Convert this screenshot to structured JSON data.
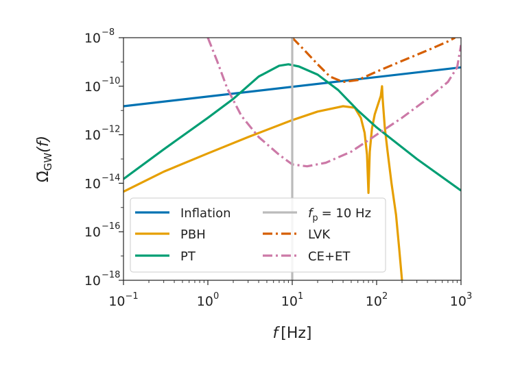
{
  "chart_data": {
    "type": "line",
    "xscale": "log",
    "yscale": "log",
    "xlim": [
      0.1,
      1000
    ],
    "ylim": [
      1e-18,
      1e-08
    ],
    "grid": false,
    "legend_placement": "lower-left",
    "xlabel": {
      "base": "f",
      "unit": "[Hz]"
    },
    "ylabel": {
      "base": "Ω̄",
      "sub": "GW",
      "arg": "(f)"
    },
    "xticks": [
      {
        "value": 0.1,
        "base": "10",
        "exp": "−1"
      },
      {
        "value": 1,
        "base": "10",
        "exp": "0"
      },
      {
        "value": 10,
        "base": "10",
        "exp": "1"
      },
      {
        "value": 100,
        "base": "10",
        "exp": "2"
      },
      {
        "value": 1000,
        "base": "10",
        "exp": "3"
      }
    ],
    "yticks": [
      {
        "value": 1e-18,
        "base": "10",
        "exp": "−18"
      },
      {
        "value": 1e-16,
        "base": "10",
        "exp": "−16"
      },
      {
        "value": 1e-14,
        "base": "10",
        "exp": "−14"
      },
      {
        "value": 1e-12,
        "base": "10",
        "exp": "−12"
      },
      {
        "value": 1e-10,
        "base": "10",
        "exp": "−10"
      },
      {
        "value": 1e-08,
        "base": "10",
        "exp": "−8"
      }
    ],
    "series": [
      {
        "name": "Inflation",
        "color": "#0072b2",
        "dash": "solid",
        "points": [
          [
            0.1,
            1.5e-11
          ],
          [
            1000,
            6e-10
          ]
        ]
      },
      {
        "name": "PBH",
        "color": "#e69f00",
        "dash": "solid",
        "points": [
          [
            0.1,
            4.5e-15
          ],
          [
            0.3,
            3e-14
          ],
          [
            1,
            1.7e-13
          ],
          [
            3,
            8e-13
          ],
          [
            10,
            4e-12
          ],
          [
            20,
            9e-12
          ],
          [
            40,
            1.5e-11
          ],
          [
            55,
            1.3e-11
          ],
          [
            65,
            5e-12
          ],
          [
            72,
            1.2e-12
          ],
          [
            77,
            1.5e-13
          ],
          [
            80,
            4e-15
          ],
          [
            83,
            2e-13
          ],
          [
            88,
            1.8e-12
          ],
          [
            95,
            7e-12
          ],
          [
            105,
            2e-11
          ],
          [
            112,
            4e-11
          ],
          [
            116,
            1e-10
          ],
          [
            118,
            3e-11
          ],
          [
            125,
            2e-12
          ],
          [
            135,
            2e-13
          ],
          [
            150,
            1e-14
          ],
          [
            170,
            5e-16
          ],
          [
            185,
            2e-17
          ],
          [
            200,
            1e-18
          ]
        ]
      },
      {
        "name": "PT",
        "color": "#009e73",
        "dash": "solid",
        "points": [
          [
            0.1,
            1.5e-14
          ],
          [
            0.3,
            2.5e-13
          ],
          [
            1,
            5e-12
          ],
          [
            2,
            3e-11
          ],
          [
            4,
            2.5e-10
          ],
          [
            7,
            7e-10
          ],
          [
            9,
            8e-10
          ],
          [
            12,
            6.5e-10
          ],
          [
            20,
            3e-10
          ],
          [
            35,
            7e-11
          ],
          [
            60,
            1e-11
          ],
          [
            100,
            2e-12
          ],
          [
            300,
            1e-13
          ],
          [
            1000,
            5e-15
          ]
        ]
      },
      {
        "name": "LVK",
        "color": "#d55e00",
        "dash": "dashdot",
        "points": [
          [
            10,
            1e-08
          ],
          [
            14,
            3e-09
          ],
          [
            20,
            8e-10
          ],
          [
            28,
            2.5e-10
          ],
          [
            40,
            1.5e-10
          ],
          [
            60,
            1.8e-10
          ],
          [
            100,
            4e-10
          ],
          [
            200,
            1.1e-09
          ],
          [
            400,
            3e-09
          ],
          [
            700,
            7e-09
          ],
          [
            850,
            1e-08
          ]
        ]
      },
      {
        "name": "CE+ET",
        "color": "#cc79a7",
        "dash": "dashdot",
        "points": [
          [
            1,
            1e-08
          ],
          [
            1.3,
            1e-09
          ],
          [
            1.7,
            8e-11
          ],
          [
            2.5,
            6e-12
          ],
          [
            4,
            8e-13
          ],
          [
            7,
            1.5e-13
          ],
          [
            10,
            6e-14
          ],
          [
            15,
            5e-14
          ],
          [
            25,
            7e-14
          ],
          [
            50,
            2e-13
          ],
          [
            100,
            1e-12
          ],
          [
            200,
            5e-12
          ],
          [
            400,
            3e-11
          ],
          [
            700,
            1.5e-10
          ],
          [
            900,
            6e-10
          ],
          [
            1000,
            5e-09
          ]
        ]
      },
      {
        "name_base": "f",
        "name_sub": "p",
        "name_rest": "= 10 Hz",
        "color": "#bbbbbb",
        "dash": "solid",
        "vline_x": 10
      }
    ],
    "legend": [
      {
        "label": "Inflation",
        "color": "#0072b2",
        "dash": "solid"
      },
      {
        "label": "PBH",
        "color": "#e69f00",
        "dash": "solid"
      },
      {
        "label": "PT",
        "color": "#009e73",
        "dash": "solid"
      },
      {
        "label_base": "f",
        "label_sub": "p",
        "label_rest": "= 10 Hz",
        "color": "#bbbbbb",
        "dash": "solid"
      },
      {
        "label": "LVK",
        "color": "#d55e00",
        "dash": "dashdot"
      },
      {
        "label": "CE+ET",
        "color": "#cc79a7",
        "dash": "dashdot"
      }
    ]
  }
}
